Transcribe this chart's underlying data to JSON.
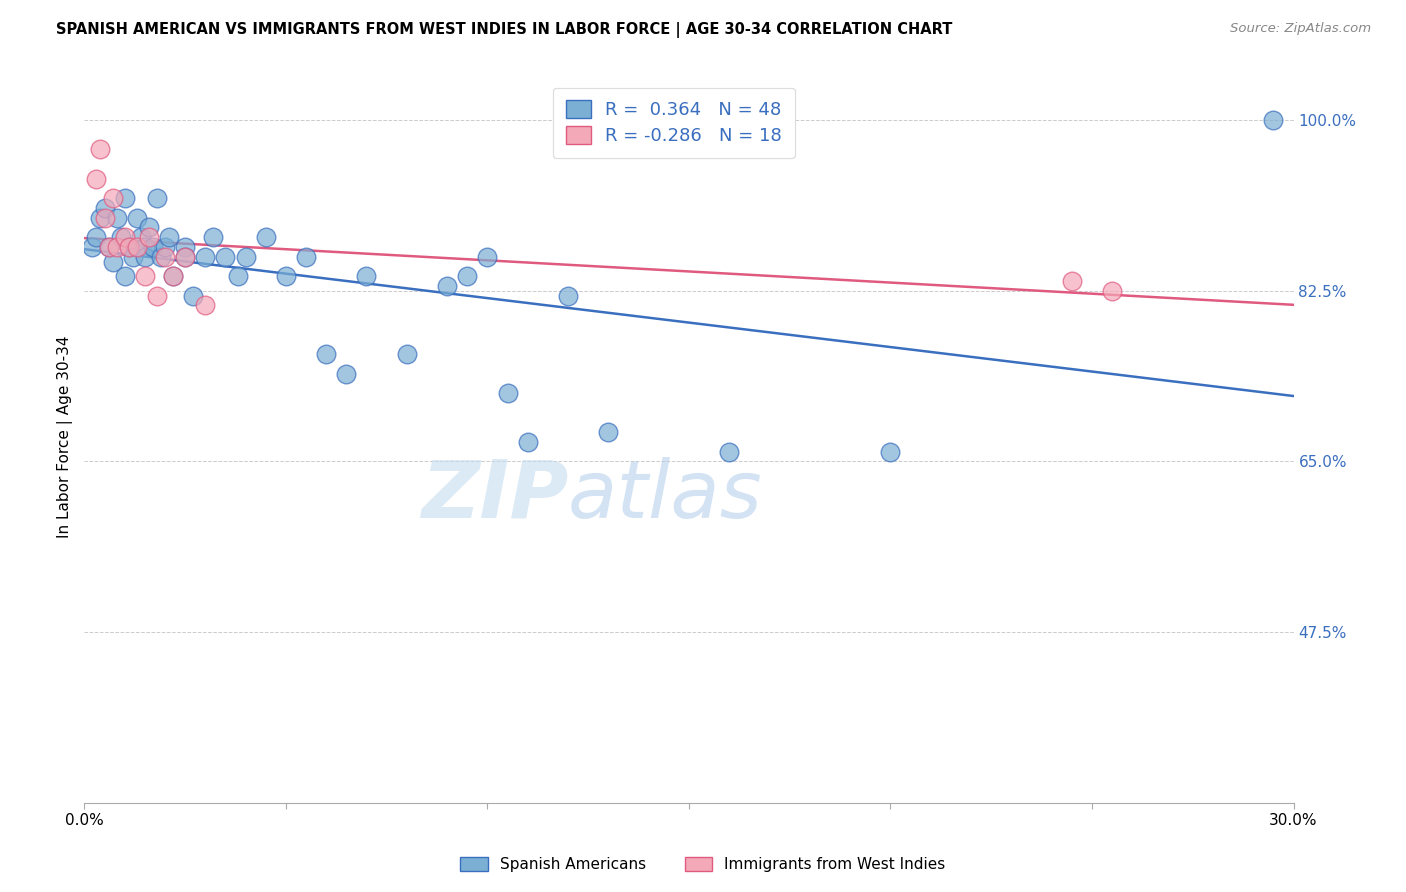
{
  "title": "SPANISH AMERICAN VS IMMIGRANTS FROM WEST INDIES IN LABOR FORCE | AGE 30-34 CORRELATION CHART",
  "source": "Source: ZipAtlas.com",
  "ylabel": "In Labor Force | Age 30-34",
  "y_ticks": [
    0.475,
    0.65,
    0.825,
    1.0
  ],
  "y_tick_labels": [
    "47.5%",
    "65.0%",
    "82.5%",
    "100.0%"
  ],
  "x_min": 0.0,
  "x_max": 0.3,
  "y_min": 0.3,
  "y_max": 1.05,
  "legend_blue_r": "0.364",
  "legend_blue_n": "48",
  "legend_pink_r": "-0.286",
  "legend_pink_n": "18",
  "legend_label_blue": "Spanish Americans",
  "legend_label_pink": "Immigrants from West Indies",
  "blue_color": "#7BAFD4",
  "pink_color": "#F4A9B8",
  "line_blue": "#3A6FBF",
  "line_pink": "#E05A80",
  "tick_label_color": "#3A6FBF",
  "watermark_color": "#D4E8F7",
  "blue_x": [
    0.002,
    0.003,
    0.004,
    0.005,
    0.006,
    0.007,
    0.008,
    0.009,
    0.01,
    0.01,
    0.011,
    0.012,
    0.013,
    0.014,
    0.015,
    0.015,
    0.016,
    0.017,
    0.018,
    0.019,
    0.02,
    0.021,
    0.022,
    0.025,
    0.025,
    0.027,
    0.03,
    0.032,
    0.035,
    0.038,
    0.04,
    0.045,
    0.05,
    0.055,
    0.06,
    0.065,
    0.07,
    0.08,
    0.09,
    0.095,
    0.1,
    0.105,
    0.11,
    0.12,
    0.13,
    0.16,
    0.2,
    0.295
  ],
  "blue_y": [
    0.87,
    0.88,
    0.9,
    0.91,
    0.87,
    0.855,
    0.9,
    0.88,
    0.84,
    0.92,
    0.87,
    0.86,
    0.9,
    0.88,
    0.87,
    0.86,
    0.89,
    0.87,
    0.92,
    0.86,
    0.87,
    0.88,
    0.84,
    0.87,
    0.86,
    0.82,
    0.86,
    0.88,
    0.86,
    0.84,
    0.86,
    0.88,
    0.84,
    0.86,
    0.76,
    0.74,
    0.84,
    0.76,
    0.83,
    0.84,
    0.86,
    0.72,
    0.67,
    0.82,
    0.68,
    0.66,
    0.66,
    1.0
  ],
  "pink_x": [
    0.003,
    0.004,
    0.005,
    0.006,
    0.007,
    0.008,
    0.01,
    0.011,
    0.013,
    0.015,
    0.016,
    0.018,
    0.02,
    0.022,
    0.025,
    0.03,
    0.245,
    0.255
  ],
  "pink_y": [
    0.94,
    0.97,
    0.9,
    0.87,
    0.92,
    0.87,
    0.88,
    0.87,
    0.87,
    0.84,
    0.88,
    0.82,
    0.86,
    0.84,
    0.86,
    0.81,
    0.835,
    0.825
  ]
}
